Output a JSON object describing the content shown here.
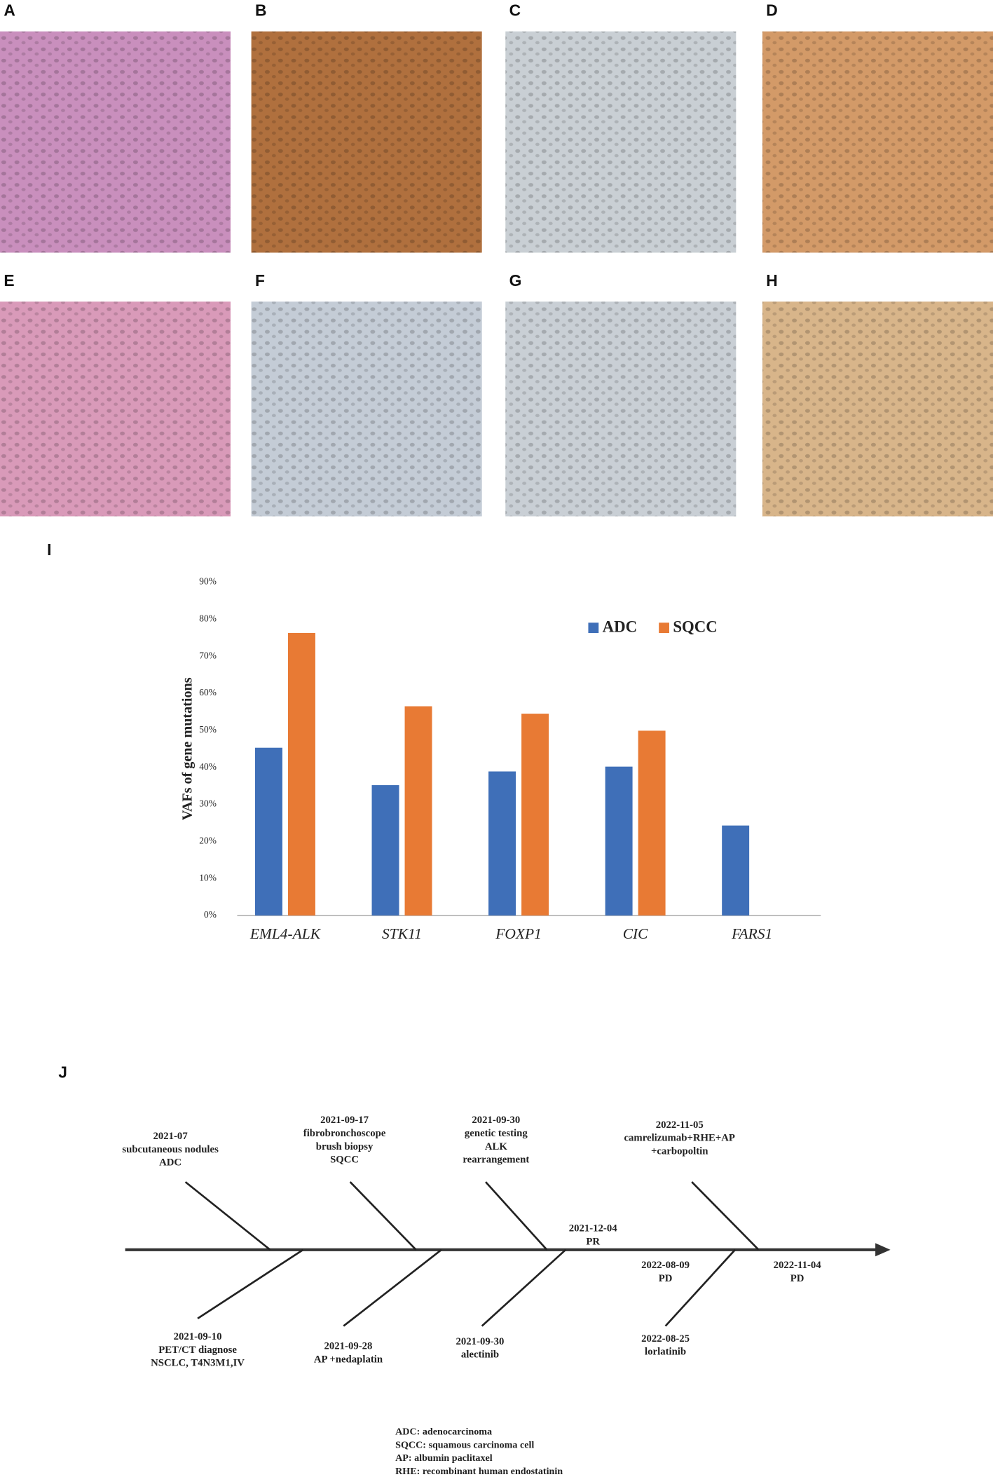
{
  "panel_labels": [
    "A",
    "B",
    "C",
    "D",
    "E",
    "F",
    "G",
    "H"
  ],
  "chart_label": "I",
  "timeline_label": "J",
  "chart_data": {
    "type": "bar",
    "ylabel": "VAFs of gene mutations",
    "categories": [
      "EML4-ALK",
      "STK11",
      "FOXP1",
      "CIC",
      "FARS1"
    ],
    "series": [
      {
        "name": "ADC",
        "color": "#3f6fb8",
        "values": [
          45.3,
          35.2,
          38.9,
          40.2,
          24.3
        ]
      },
      {
        "name": "SQCC",
        "color": "#e87a34",
        "values": [
          76.3,
          56.5,
          54.5,
          49.9,
          null
        ]
      }
    ],
    "ylim": [
      0,
      90
    ],
    "yticks": [
      {
        "value": 0,
        "label": "0%"
      },
      {
        "value": 10,
        "label": "10%"
      },
      {
        "value": 20,
        "label": "20%"
      },
      {
        "value": 30,
        "label": "30%"
      },
      {
        "value": 40,
        "label": "40%"
      },
      {
        "value": 50,
        "label": "50%"
      },
      {
        "value": 60,
        "label": "60%"
      },
      {
        "value": 70,
        "label": "70%"
      },
      {
        "value": 80,
        "label": "80%"
      },
      {
        "value": 90,
        "label": "90%"
      }
    ],
    "legend": "upper right"
  },
  "timeline": {
    "events": [
      {
        "lines": [
          "2021-07",
          "subcutaneous nodules",
          "ADC"
        ]
      },
      {
        "lines": [
          "2021-09-17",
          "fibrobronchoscope",
          "brush biopsy",
          "SQCC"
        ]
      },
      {
        "lines": [
          "2021-09-30",
          "genetic testing",
          "ALK",
          "rearrangement"
        ]
      },
      {
        "lines": [
          "2022-11-05",
          "camrelizumab+RHE+AP",
          "+carbopoltin"
        ]
      },
      {
        "lines": [
          "2021-12-04",
          "PR"
        ]
      },
      {
        "lines": [
          "2021-09-10",
          "PET/CT diagnose",
          "NSCLC, T4N3M1,IV"
        ]
      },
      {
        "lines": [
          "2021-09-28",
          "AP +nedaplatin"
        ]
      },
      {
        "lines": [
          "2021-09-30",
          "alectinib"
        ]
      },
      {
        "lines": [
          "2022-08-09",
          "PD"
        ]
      },
      {
        "lines": [
          "2022-08-25",
          "lorlatinib"
        ]
      },
      {
        "lines": [
          "2022-11-04",
          "PD"
        ]
      }
    ]
  },
  "abbreviations": [
    "ADC: adenocarcinoma",
    "SQCC: squamous carcinoma cell",
    "AP: albumin paclitaxel",
    "RHE: recombinant human endostatinin"
  ]
}
